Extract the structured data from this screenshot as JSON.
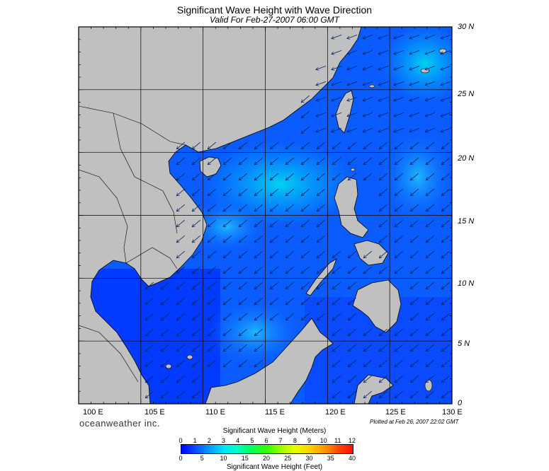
{
  "title": "Significant Wave Height with Wave Direction",
  "subtitle": "Valid For Feb-27-2007 06:00 GMT",
  "lat_labels": [
    "30 N",
    "25 N",
    "20 N",
    "15 N",
    "10 N",
    "5 N",
    "0"
  ],
  "lon_labels": [
    "100 E",
    "105 E",
    "110 E",
    "115 E",
    "120 E",
    "125 E",
    "130 E"
  ],
  "brand": "oceanweather inc.",
  "plotted": "Plotted at Feb 26, 2007 22:02 GMT",
  "legend": {
    "title_meters": "Significant Wave Height (Meters)",
    "title_feet": "Significant Wave Height (Feet)",
    "meters_ticks": [
      "0",
      "1",
      "2",
      "3",
      "4",
      "5",
      "6",
      "7",
      "8",
      "9",
      "10",
      "11",
      "12"
    ],
    "feet_ticks": [
      "0",
      "5",
      "10",
      "15",
      "20",
      "25",
      "30",
      "35",
      "40"
    ]
  },
  "map_extent": {
    "lon_min": 100,
    "lon_max": 130,
    "lat_min": 0,
    "lat_max": 30
  },
  "colors": {
    "land": "#c0c0c0",
    "sea_low": "#0000ff",
    "sea_mid": "#0a5cff",
    "sea_high": "#00aaff",
    "sea_peak": "#00ddee"
  },
  "wave_direction": "toward southwest (northeast monsoon)"
}
